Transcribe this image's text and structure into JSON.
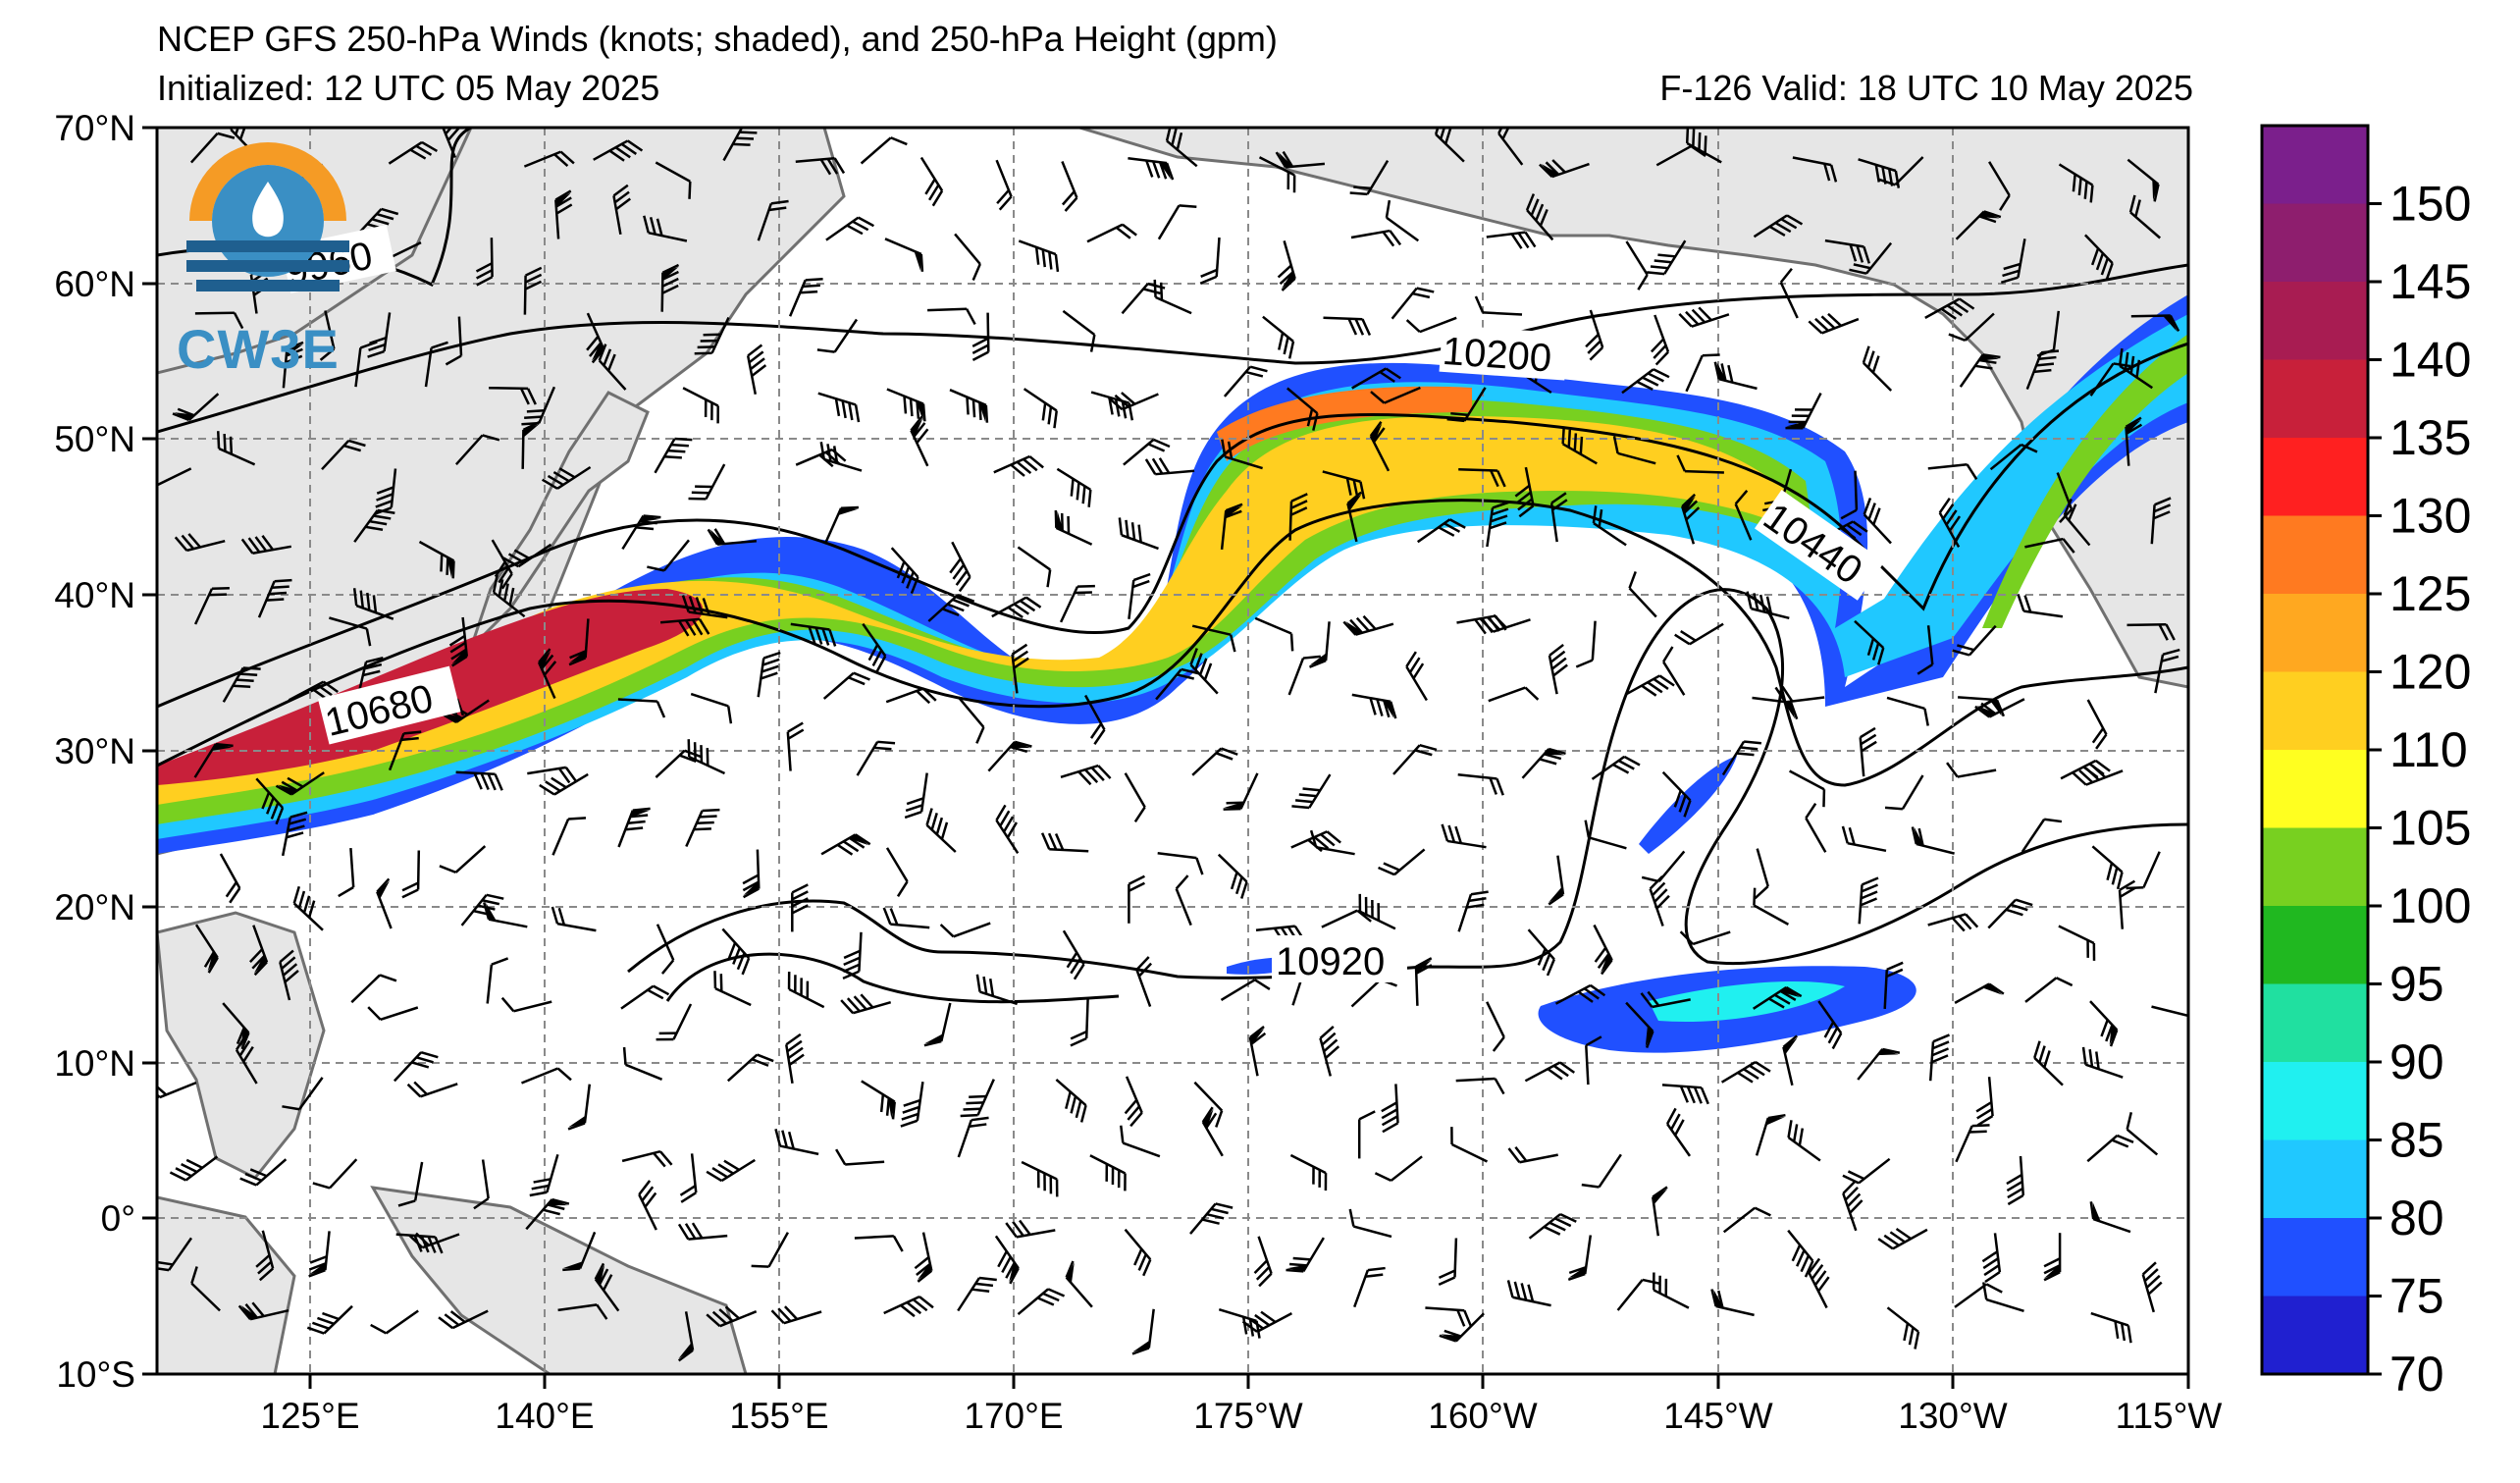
{
  "header": {
    "title": "NCEP GFS 250-hPa Winds (knots; shaded), and 250-hPa Height (gpm)",
    "initialized": "Initialized: 12 UTC 05 May 2025",
    "valid": "F-126  Valid: 18 UTC 10 May 2025"
  },
  "logo": {
    "text": "CW3E",
    "colors": {
      "orange": "#f59b25",
      "blue": "#3a8fc4",
      "navy": "#1f5f8f"
    }
  },
  "axes": {
    "lat_labels": [
      "70°N",
      "60°N",
      "50°N",
      "40°N",
      "30°N",
      "20°N",
      "10°N",
      "0°",
      "10°S"
    ],
    "lon_labels": [
      "125°E",
      "140°E",
      "155°E",
      "170°E",
      "175°W",
      "160°W",
      "145°W",
      "130°W",
      "115°W"
    ]
  },
  "contour_labels": [
    "9960",
    "10200",
    "10440",
    "10680",
    "10920"
  ],
  "colorbar": {
    "labels": [
      "150",
      "145",
      "140",
      "135",
      "130",
      "125",
      "120",
      "110",
      "105",
      "100",
      "95",
      "90",
      "85",
      "80",
      "75",
      "70"
    ],
    "colors": [
      "#7b1f8c",
      "#8e1e6e",
      "#a81c52",
      "#c8203a",
      "#ff2020",
      "#ff7a20",
      "#ffa820",
      "#ffcf20",
      "#ffff20",
      "#78d020",
      "#20b820",
      "#20e0a0",
      "#20f0f0",
      "#20c8ff",
      "#2050ff",
      "#2020d0"
    ]
  }
}
